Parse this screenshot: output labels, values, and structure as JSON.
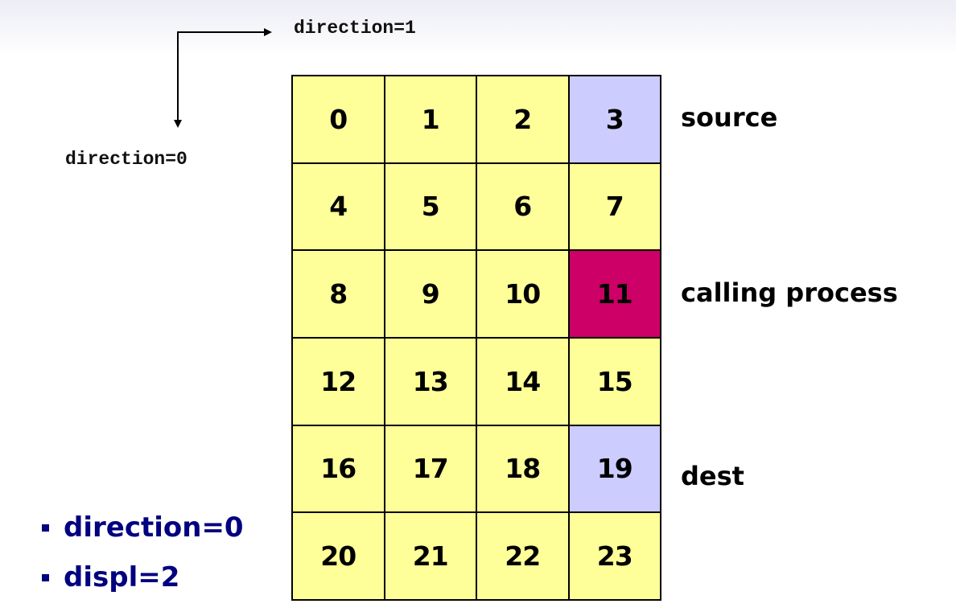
{
  "direction_x_label": "direction=1",
  "direction_y_label": "direction=0",
  "grid": {
    "rows": [
      [
        {
          "label": "0",
          "highlight": "none"
        },
        {
          "label": "1",
          "highlight": "none"
        },
        {
          "label": "2",
          "highlight": "none"
        },
        {
          "label": "3",
          "highlight": "lavender"
        }
      ],
      [
        {
          "label": "4",
          "highlight": "none"
        },
        {
          "label": "5",
          "highlight": "none"
        },
        {
          "label": "6",
          "highlight": "none"
        },
        {
          "label": "7",
          "highlight": "none"
        }
      ],
      [
        {
          "label": "8",
          "highlight": "none"
        },
        {
          "label": "9",
          "highlight": "none"
        },
        {
          "label": "10",
          "highlight": "none"
        },
        {
          "label": "11",
          "highlight": "magenta"
        }
      ],
      [
        {
          "label": "12",
          "highlight": "none"
        },
        {
          "label": "13",
          "highlight": "none"
        },
        {
          "label": "14",
          "highlight": "none"
        },
        {
          "label": "15",
          "highlight": "none"
        }
      ],
      [
        {
          "label": "16",
          "highlight": "none"
        },
        {
          "label": "17",
          "highlight": "none"
        },
        {
          "label": "18",
          "highlight": "none"
        },
        {
          "label": "19",
          "highlight": "lavender"
        }
      ],
      [
        {
          "label": "20",
          "highlight": "none"
        },
        {
          "label": "21",
          "highlight": "none"
        },
        {
          "label": "22",
          "highlight": "none"
        },
        {
          "label": "23",
          "highlight": "none"
        }
      ]
    ]
  },
  "side_labels": {
    "source": "source",
    "calling": "calling process",
    "dest": "dest"
  },
  "bullets": [
    "direction=0",
    "displ=2"
  ],
  "colors": {
    "cell": "#ffff99",
    "lavender": "#ccccff",
    "magenta": "#cc0066",
    "bullet_text": "#000080"
  }
}
